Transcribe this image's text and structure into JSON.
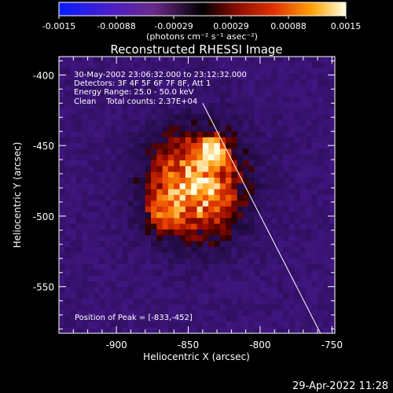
{
  "colorbar": {
    "tick_labels": [
      "-0.0015",
      "-0.00088",
      "-0.00029",
      "0.00029",
      "0.00088",
      "0.0015"
    ],
    "units_text": "(photons cm⁻² s⁻¹ asec⁻²)",
    "range": [
      -0.0015,
      0.0015
    ]
  },
  "title": "Reconstructed RHESSI Image",
  "info": {
    "time_range": "30-May-2002 23:06:32.000 to 23:12:32.000",
    "detectors": "Detectors: 3F 4F 5F 6F 7F 8F, Att 1",
    "energy_range": "Energy Range: 25.0 - 50.0 keV",
    "method_and_counts": "Clean    Total counts: 2.37E+04",
    "peak": "Position of Peak = [-833,-452]"
  },
  "axes": {
    "x_label": "Heliocentric X (arcsec)",
    "y_label": "Heliocentric Y (arcsec)",
    "x_range": [
      -940,
      -748
    ],
    "y_range": [
      -583,
      -387
    ],
    "x_ticks": [
      {
        "value": -900,
        "label": "-900"
      },
      {
        "value": -850,
        "label": "-850"
      },
      {
        "value": -800,
        "label": "-800"
      },
      {
        "value": -750,
        "label": "-750"
      }
    ],
    "y_ticks": [
      {
        "value": -400,
        "label": "-400"
      },
      {
        "value": -450,
        "label": "-450"
      },
      {
        "value": -500,
        "label": "-500"
      },
      {
        "value": -550,
        "label": "-550"
      }
    ],
    "minor_step": 10
  },
  "image_data": {
    "peak": [
      -833,
      -452
    ],
    "limb_line": [
      [
        -840,
        -420
      ],
      [
        -758,
        -583
      ]
    ]
  },
  "footer": {
    "timestamp": "29-Apr-2022 11:28"
  }
}
